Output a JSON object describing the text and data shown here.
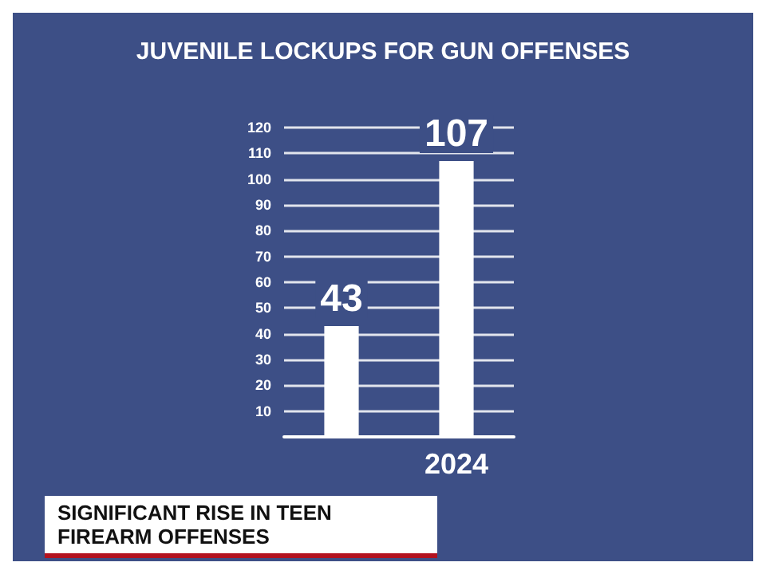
{
  "chart_data": {
    "type": "bar",
    "title": "JUVENILE LOCKUPS FOR GUN OFFENSES",
    "categories": [
      null,
      "2024"
    ],
    "values": [
      43,
      107
    ],
    "color": "#ffffff",
    "ylim": [
      0,
      120
    ],
    "yticks": [
      {
        "value": 0,
        "label": null
      },
      10,
      20,
      30,
      40,
      50,
      60,
      70,
      80,
      90,
      100,
      110,
      120
    ],
    "grid": "y",
    "data_labels": true,
    "annotations": [
      "SIGNIFICANT RISE IN TEEN FIREARM OFFENSES"
    ]
  }
}
